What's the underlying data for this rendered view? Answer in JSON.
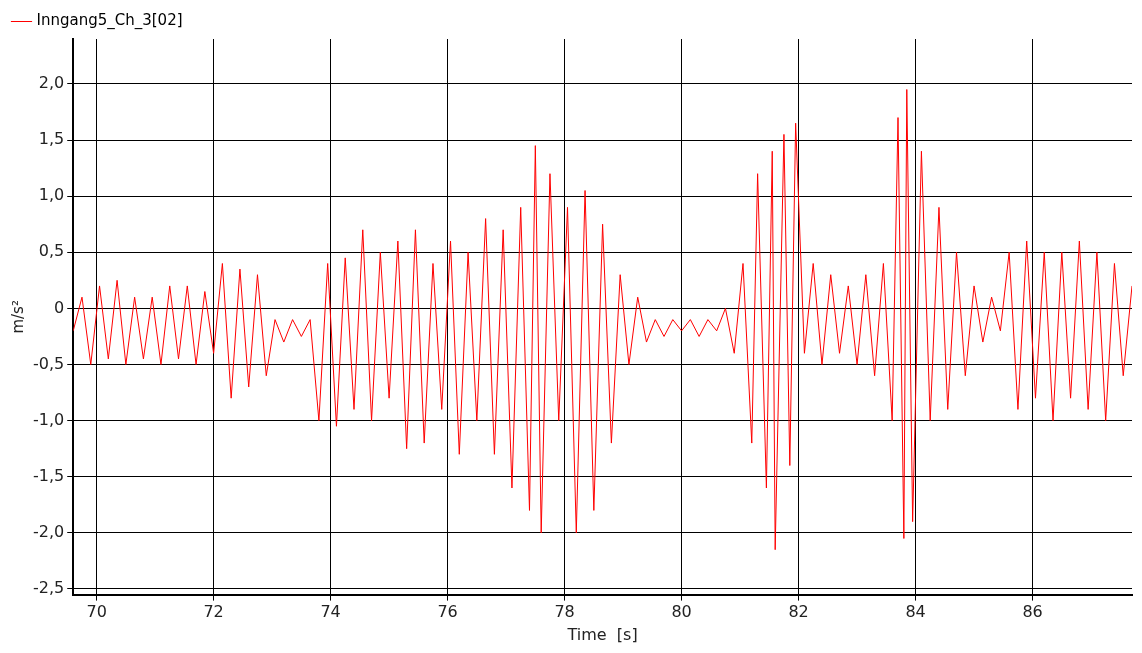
{
  "chart_data": {
    "type": "line",
    "xlabel": "Time  [s]",
    "ylabel": "m/s²",
    "legend": "top left",
    "grid": true,
    "marker": "none",
    "line_style": "solid",
    "xlim": [
      69.6,
      87.7
    ],
    "xticks": [
      70,
      72,
      74,
      76,
      78,
      80,
      82,
      84,
      86
    ],
    "ylim": [
      -2.55,
      2.4
    ],
    "yticks": [
      {
        "value": -2.5,
        "label": "-2,5"
      },
      {
        "value": -2,
        "label": "-2,0"
      },
      {
        "value": -1.5,
        "label": "-1,5"
      },
      {
        "value": -1,
        "label": "-1,0"
      },
      {
        "value": -0.5,
        "label": "-0,5"
      },
      {
        "value": 0,
        "label": "0"
      },
      {
        "value": 0.5,
        "label": "0,5"
      },
      {
        "value": 1,
        "label": "1,0"
      },
      {
        "value": 1.5,
        "label": "1,5"
      },
      {
        "value": 2,
        "label": "2,0"
      }
    ],
    "x": [
      69.6,
      69.75,
      69.9,
      70.05,
      70.2,
      70.35,
      70.5,
      70.65,
      70.8,
      70.95,
      71.1,
      71.25,
      71.4,
      71.55,
      71.7,
      71.85,
      72.0,
      72.15,
      72.3,
      72.45,
      72.6,
      72.75,
      72.9,
      73.05,
      73.2,
      73.35,
      73.5,
      73.65,
      73.8,
      73.95,
      74.1,
      74.25,
      74.4,
      74.55,
      74.7,
      74.85,
      75.0,
      75.15,
      75.3,
      75.45,
      75.6,
      75.75,
      75.9,
      76.05,
      76.2,
      76.35,
      76.5,
      76.65,
      76.8,
      76.95,
      77.1,
      77.25,
      77.4,
      77.5,
      77.6,
      77.75,
      77.9,
      78.05,
      78.2,
      78.35,
      78.5,
      78.65,
      78.8,
      78.95,
      79.1,
      79.25,
      79.4,
      79.55,
      79.7,
      79.85,
      80.0,
      80.15,
      80.3,
      80.45,
      80.6,
      80.75,
      80.9,
      81.05,
      81.2,
      81.3,
      81.45,
      81.55,
      81.6,
      81.75,
      81.85,
      81.95,
      82.1,
      82.25,
      82.4,
      82.55,
      82.7,
      82.85,
      83.0,
      83.15,
      83.3,
      83.45,
      83.6,
      83.7,
      83.8,
      83.85,
      83.95,
      84.1,
      84.25,
      84.4,
      84.55,
      84.7,
      84.85,
      85.0,
      85.15,
      85.3,
      85.45,
      85.6,
      85.75,
      85.9,
      86.05,
      86.2,
      86.35,
      86.5,
      86.65,
      86.8,
      86.95,
      87.1,
      87.25,
      87.4,
      87.55,
      87.7
    ],
    "series": [
      {
        "name": "Inngang5_Ch_3[02]",
        "color": "#ff0000",
        "values": [
          -0.2,
          0.1,
          -0.5,
          0.2,
          -0.45,
          0.25,
          -0.5,
          0.1,
          -0.45,
          0.1,
          -0.5,
          0.2,
          -0.45,
          0.2,
          -0.5,
          0.15,
          -0.4,
          0.4,
          -0.8,
          0.35,
          -0.7,
          0.3,
          -0.6,
          -0.1,
          -0.3,
          -0.1,
          -0.25,
          -0.1,
          -1.0,
          0.4,
          -1.05,
          0.45,
          -0.9,
          0.7,
          -1.0,
          0.5,
          -0.8,
          0.6,
          -1.25,
          0.7,
          -1.2,
          0.4,
          -0.9,
          0.6,
          -1.3,
          0.5,
          -1.0,
          0.8,
          -1.3,
          0.7,
          -1.6,
          0.9,
          -1.8,
          1.45,
          -2.0,
          1.2,
          -1.0,
          0.9,
          -2.0,
          1.05,
          -1.8,
          0.75,
          -1.2,
          0.3,
          -0.5,
          0.1,
          -0.3,
          -0.1,
          -0.25,
          -0.1,
          -0.2,
          -0.1,
          -0.25,
          -0.1,
          -0.2,
          0.0,
          -0.4,
          0.4,
          -1.2,
          1.2,
          -1.6,
          1.4,
          -2.15,
          1.55,
          -1.4,
          1.65,
          -0.4,
          0.4,
          -0.5,
          0.3,
          -0.4,
          0.2,
          -0.5,
          0.3,
          -0.6,
          0.4,
          -1.0,
          1.7,
          -2.05,
          1.95,
          -1.9,
          1.4,
          -1.0,
          0.9,
          -0.9,
          0.5,
          -0.6,
          0.2,
          -0.3,
          0.1,
          -0.2,
          0.5,
          -0.9,
          0.6,
          -0.8,
          0.5,
          -1.0,
          0.5,
          -0.8,
          0.6,
          -0.9,
          0.5,
          -1.0,
          0.4,
          -0.6,
          0.2
        ]
      }
    ]
  }
}
